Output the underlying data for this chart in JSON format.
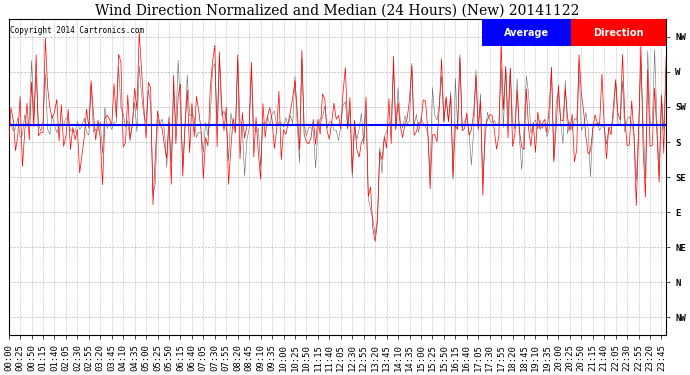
{
  "title": "Wind Direction Normalized and Median (24 Hours) (New) 20141122",
  "copyright": "Copyright 2014 Cartronics.com",
  "legend_blue_label": "Average",
  "legend_red_label": "Direction",
  "ytick_labels": [
    "NW",
    "W",
    "SW",
    "S",
    "SE",
    "E",
    "NE",
    "N",
    "NW"
  ],
  "ytick_values": [
    360,
    315,
    270,
    225,
    180,
    135,
    90,
    45,
    0
  ],
  "ymin": -22.5,
  "ymax": 382.5,
  "avg_line_value": 247,
  "line_color_red": "#ff0000",
  "line_color_blue": "#0000ff",
  "bg_color": "#ffffff",
  "grid_color": "#bbbbbb",
  "title_fontsize": 10,
  "tick_fontsize": 6.5,
  "num_points": 288,
  "figwidth": 6.9,
  "figheight": 3.75,
  "dpi": 100
}
